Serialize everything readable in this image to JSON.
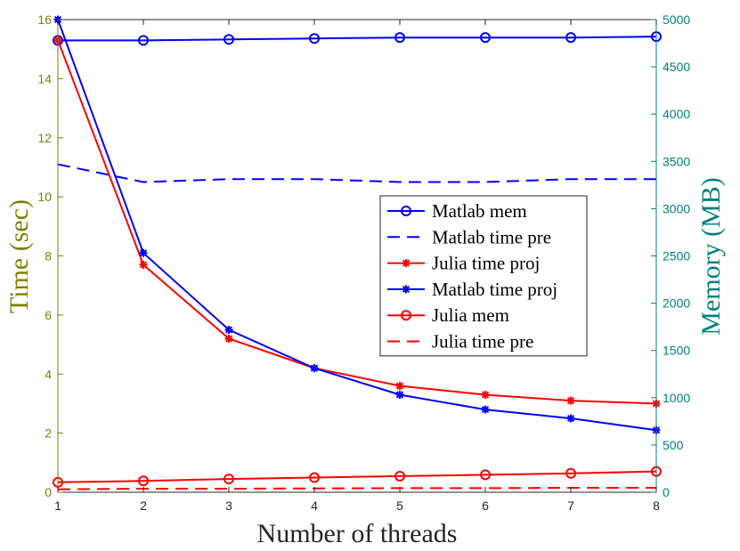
{
  "colors": {
    "left_axis": "#7f7f00",
    "right_axis": "#008080",
    "x_axis": "#262626",
    "blue": "#0000ff",
    "red": "#ff0000"
  },
  "chart_data": {
    "type": "line",
    "title": "",
    "xlabel": "Number of threads",
    "ylabel_left": "Time (sec)",
    "ylabel_right": "Memory (MB)",
    "x": [
      1,
      2,
      3,
      4,
      5,
      6,
      7,
      8
    ],
    "xlim": [
      1,
      8
    ],
    "ylim_left": [
      0,
      16
    ],
    "ylim_right": [
      0,
      5000
    ],
    "xticks": [
      "1",
      "2",
      "3",
      "4",
      "5",
      "6",
      "7",
      "8"
    ],
    "yticks_left": [
      "0",
      "2",
      "4",
      "6",
      "8",
      "10",
      "12",
      "14",
      "16"
    ],
    "yticks_right": [
      "0",
      "500",
      "1000",
      "1500",
      "2000",
      "2500",
      "3000",
      "3500",
      "4000",
      "4500",
      "5000"
    ],
    "grid": false,
    "legend_position": "center-right",
    "series": [
      {
        "name": "Matlab mem",
        "axis": "right",
        "color": "#0000ff",
        "style": "solid",
        "marker": "circle",
        "values": [
          4780,
          4780,
          4790,
          4800,
          4810,
          4810,
          4810,
          4820
        ]
      },
      {
        "name": "Matlab time pre",
        "axis": "left",
        "color": "#0000ff",
        "style": "dashed",
        "marker": "none",
        "values": [
          11.1,
          10.5,
          10.6,
          10.6,
          10.5,
          10.5,
          10.6,
          10.6
        ]
      },
      {
        "name": "Julia time proj",
        "axis": "left",
        "color": "#ff0000",
        "style": "solid",
        "marker": "star",
        "values": [
          15.3,
          7.7,
          5.2,
          4.2,
          3.6,
          3.3,
          3.1,
          3.0
        ]
      },
      {
        "name": "Matlab time proj",
        "axis": "left",
        "color": "#0000ff",
        "style": "solid",
        "marker": "star",
        "values": [
          16.0,
          8.1,
          5.5,
          4.2,
          3.3,
          2.8,
          2.5,
          2.1
        ]
      },
      {
        "name": "Julia mem",
        "axis": "right",
        "color": "#ff0000",
        "style": "solid",
        "marker": "circle",
        "values": [
          105,
          120,
          140,
          155,
          170,
          185,
          200,
          220
        ]
      },
      {
        "name": "Julia time pre",
        "axis": "left",
        "color": "#ff0000",
        "style": "dashed",
        "marker": "none",
        "values": [
          0.1,
          0.12,
          0.12,
          0.13,
          0.14,
          0.14,
          0.15,
          0.15
        ]
      }
    ]
  }
}
